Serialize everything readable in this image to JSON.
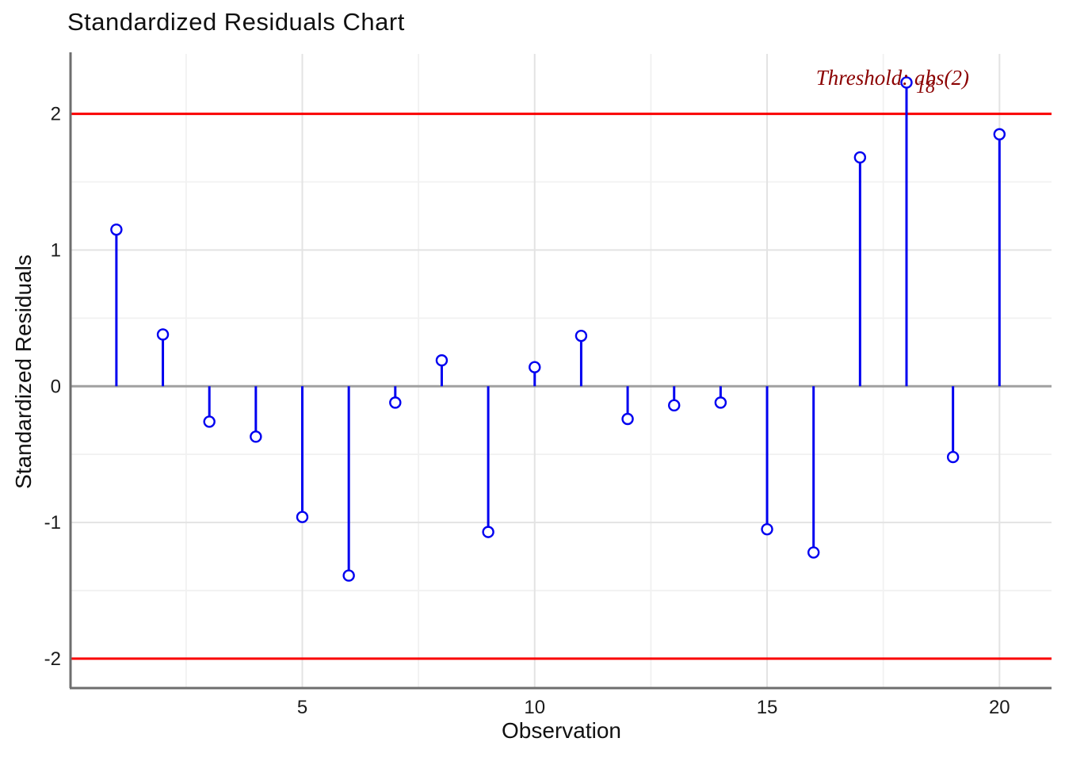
{
  "title": "Standardized Residuals Chart",
  "annotation": {
    "text": "Threshold: abs(2)",
    "color": "#8B0000"
  },
  "outlier_label": {
    "text": "18",
    "observation": 18
  },
  "chart_data": {
    "type": "stem",
    "title": "Standardized Residuals Chart",
    "xlabel": "Observation",
    "ylabel": "Standardized Residuals",
    "x": [
      1,
      2,
      3,
      4,
      5,
      6,
      7,
      8,
      9,
      10,
      11,
      12,
      13,
      14,
      15,
      16,
      17,
      18,
      19,
      20
    ],
    "values": [
      1.15,
      0.38,
      -0.26,
      -0.37,
      -0.96,
      -1.39,
      -0.12,
      0.19,
      -1.07,
      0.14,
      0.37,
      -0.24,
      -0.14,
      -0.12,
      -1.05,
      -1.22,
      1.68,
      2.23,
      -0.52,
      1.85
    ],
    "x_ticks": [
      5,
      10,
      15,
      20
    ],
    "y_ticks": [
      2,
      1,
      0,
      -1,
      -2
    ],
    "x_minor_gridlines": [
      2.5,
      7.5,
      12.5,
      17.5
    ],
    "y_minor_gridlines": [
      1.5,
      0.5,
      -0.5,
      -1.5
    ],
    "xlim": [
      0.03,
      21.12
    ],
    "ylim": [
      -2.21,
      2.44
    ],
    "threshold_lines": [
      2,
      -2
    ],
    "zero_line": 0,
    "grid": "on",
    "legend": "none",
    "colors": {
      "stem": "#0000F0",
      "marker_fill": "#FFFFFF",
      "threshold_line": "#FA0000",
      "zero_line": "#A0A0A0",
      "axis_line": "#6E6E6E",
      "grid_major": "#E3E3E3",
      "grid_minor": "#F1F1F1",
      "tick_label": "#1A1A1A",
      "annotation": "#8B0000"
    }
  }
}
